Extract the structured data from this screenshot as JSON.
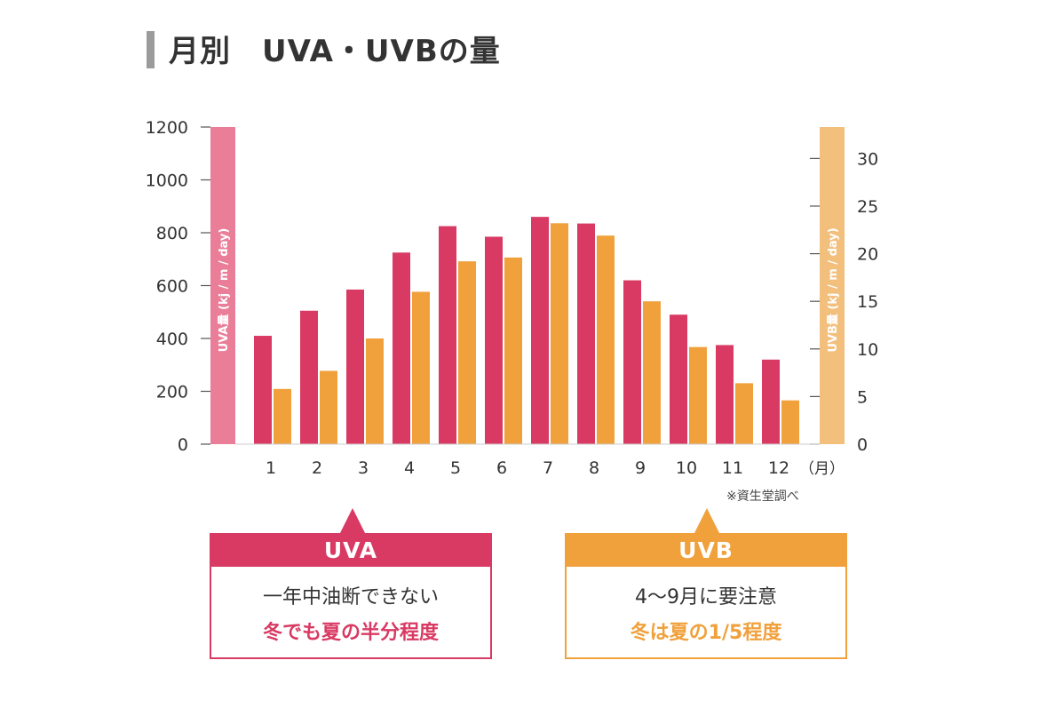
{
  "title": "月別　UVA・UVBの量",
  "source_note": "※資生堂調べ",
  "colors": {
    "uva": "#d93a63",
    "uvb": "#f0a13c",
    "uva_axis": "#ea7e98",
    "uvb_axis": "#f3bf7c",
    "grid": "#d8d8d8",
    "text": "#333333"
  },
  "chart_data": {
    "type": "bar",
    "categories": [
      "1",
      "2",
      "3",
      "4",
      "5",
      "6",
      "7",
      "8",
      "9",
      "10",
      "11",
      "12"
    ],
    "x_unit_label": "（月）",
    "series": [
      {
        "name": "UVA",
        "axis": "left",
        "values": [
          410,
          505,
          585,
          725,
          825,
          785,
          860,
          835,
          620,
          490,
          375,
          320
        ]
      },
      {
        "name": "UVB",
        "axis": "right",
        "values": [
          5.8,
          7.7,
          11.1,
          16.0,
          19.2,
          19.6,
          23.2,
          21.9,
          15.0,
          10.2,
          6.4,
          4.6
        ]
      }
    ],
    "y_left": {
      "label": "UVA量 (kj / m / day)",
      "ylim": [
        0,
        1200
      ],
      "ticks": [
        "0",
        "200",
        "400",
        "600",
        "800",
        "1000",
        "1200"
      ]
    },
    "y_right": {
      "label": "UVB量 (kj / m / day)",
      "ylim": [
        0,
        33.3
      ],
      "ticks": [
        "0",
        "5",
        "10",
        "15",
        "20",
        "25",
        "30"
      ]
    },
    "grid": false,
    "legend": "none"
  },
  "callouts": {
    "uva": {
      "title": "UVA",
      "line1": "一年中油断できない",
      "line2": "冬でも夏の半分程度"
    },
    "uvb": {
      "title": "UVB",
      "line1": "4〜9月に要注意",
      "line2": "冬は夏の1/5程度"
    }
  }
}
